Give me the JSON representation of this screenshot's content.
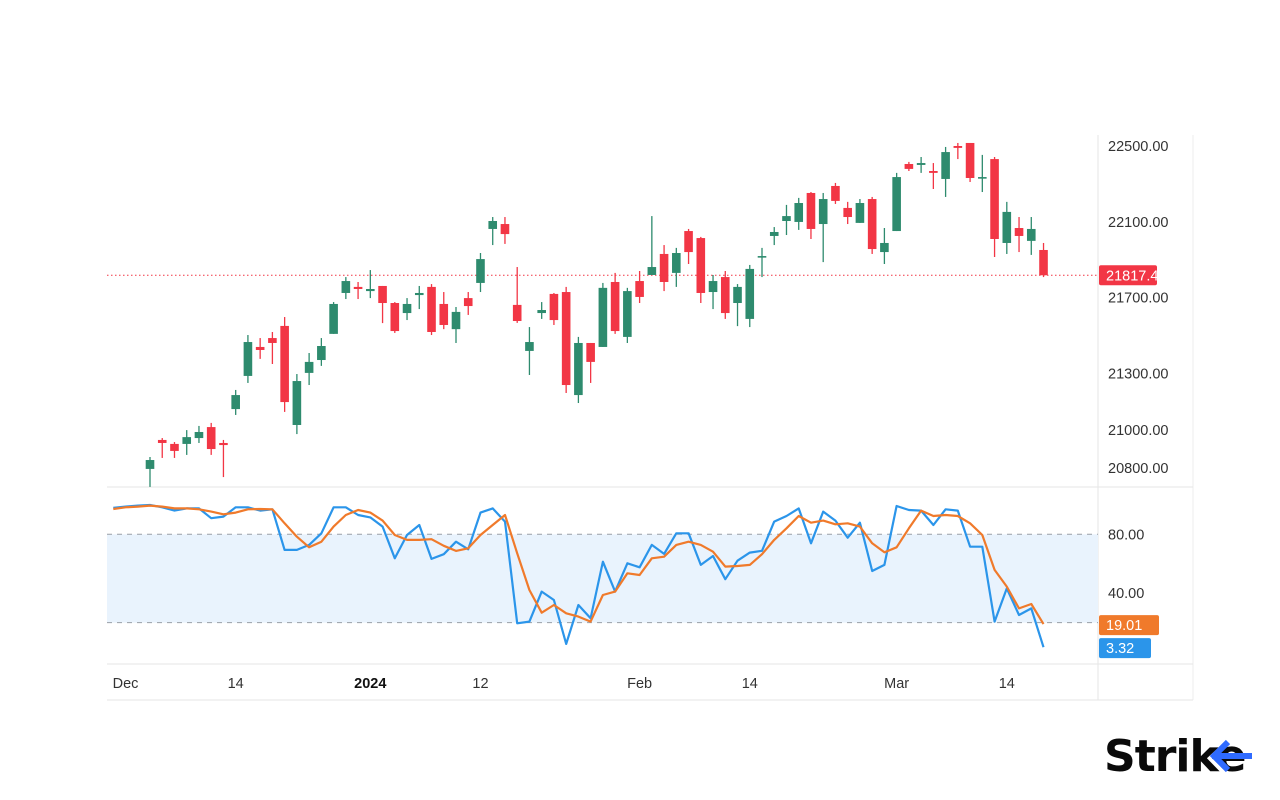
{
  "chart_data": [
    {
      "type": "candlestick",
      "title": "",
      "price_axis": {
        "ticks": [
          22500,
          22100,
          21700,
          21300,
          21000,
          20800
        ],
        "tick_labels": [
          "22500.00",
          "22100.00",
          "21700.00",
          "21300.00",
          "21000.00",
          "20800.00"
        ],
        "range": [
          20700,
          22520
        ],
        "position": "right"
      },
      "last_price": {
        "value": 21817.45,
        "label": "21817.45",
        "color": "#f23645"
      },
      "colors": {
        "up": "#2e8b6e",
        "down": "#f23645"
      },
      "ohlc_columns": [
        "open",
        "high",
        "low",
        "close"
      ],
      "candles": [
        [
          20795,
          20858,
          20700,
          20842
        ],
        [
          20948,
          20958,
          20853,
          20932
        ],
        [
          20927,
          20937,
          20853,
          20890
        ],
        [
          20927,
          21000,
          20869,
          20963
        ],
        [
          20958,
          21022,
          20932,
          20990
        ],
        [
          21016,
          21038,
          20869,
          20900
        ],
        [
          20932,
          20948,
          20752,
          20921
        ],
        [
          21111,
          21212,
          21080,
          21185
        ],
        [
          21286,
          21502,
          21249,
          21465
        ],
        [
          21439,
          21486,
          21376,
          21423
        ],
        [
          21486,
          21518,
          21349,
          21460
        ],
        [
          21550,
          21597,
          21096,
          21148
        ],
        [
          21027,
          21296,
          20979,
          21259
        ],
        [
          21302,
          21407,
          21238,
          21360
        ],
        [
          21370,
          21486,
          21339,
          21444
        ],
        [
          21508,
          21676,
          21508,
          21666
        ],
        [
          21724,
          21808,
          21692,
          21787
        ],
        [
          21756,
          21782,
          21692,
          21745
        ],
        [
          21734,
          21845,
          21697,
          21745
        ],
        [
          21761,
          21761,
          21565,
          21671
        ],
        [
          21671,
          21676,
          21513,
          21523
        ],
        [
          21618,
          21697,
          21581,
          21666
        ],
        [
          21713,
          21761,
          21639,
          21724
        ],
        [
          21756,
          21771,
          21502,
          21518
        ],
        [
          21666,
          21729,
          21533,
          21555
        ],
        [
          21533,
          21650,
          21460,
          21624
        ],
        [
          21697,
          21729,
          21608,
          21655
        ],
        [
          21777,
          21935,
          21729,
          21903
        ],
        [
          22062,
          22125,
          21977,
          22104
        ],
        [
          22088,
          22125,
          21983,
          22035
        ],
        [
          21661,
          21861,
          21566,
          21576
        ],
        [
          21418,
          21544,
          21291,
          21465
        ],
        [
          21618,
          21676,
          21587,
          21634
        ],
        [
          21719,
          21724,
          21555,
          21581
        ],
        [
          21729,
          21756,
          21196,
          21238
        ],
        [
          21185,
          21492,
          21143,
          21460
        ],
        [
          21460,
          21460,
          21249,
          21360
        ],
        [
          21439,
          21777,
          21439,
          21751
        ],
        [
          21782,
          21830,
          21508,
          21523
        ],
        [
          21492,
          21751,
          21460,
          21734
        ],
        [
          21787,
          21840,
          21671,
          21703
        ],
        [
          21819,
          22130,
          21819,
          21861
        ],
        [
          21930,
          21977,
          21734,
          21782
        ],
        [
          21830,
          21962,
          21756,
          21935
        ],
        [
          22051,
          22062,
          21877,
          21940
        ],
        [
          22014,
          22020,
          21671,
          21724
        ],
        [
          21729,
          21819,
          21639,
          21787
        ],
        [
          21808,
          21840,
          21587,
          21618
        ],
        [
          21671,
          21771,
          21549,
          21756
        ],
        [
          21587,
          21872,
          21544,
          21851
        ],
        [
          21914,
          21962,
          21808,
          21919
        ],
        [
          22025,
          22072,
          21977,
          22046
        ],
        [
          22104,
          22189,
          22030,
          22130
        ],
        [
          22099,
          22226,
          22057,
          22199
        ],
        [
          22252,
          22257,
          22009,
          22062
        ],
        [
          22088,
          22252,
          21887,
          22220
        ],
        [
          22289,
          22305,
          22194,
          22210
        ],
        [
          22173,
          22205,
          22088,
          22125
        ],
        [
          22094,
          22220,
          22094,
          22199
        ],
        [
          22220,
          22231,
          21930,
          21956
        ],
        [
          21940,
          22067,
          21877,
          21988
        ],
        [
          22051,
          22358,
          22051,
          22336
        ],
        [
          22405,
          22416,
          22368,
          22379
        ],
        [
          22400,
          22442,
          22358,
          22410
        ],
        [
          22368,
          22410,
          22273,
          22358
        ],
        [
          22326,
          22495,
          22231,
          22468
        ],
        [
          22500,
          22516,
          22431,
          22490
        ],
        [
          22516,
          22516,
          22310,
          22331
        ],
        [
          22331,
          22453,
          22257,
          22336
        ],
        [
          22431,
          22442,
          21914,
          22009
        ],
        [
          21988,
          22205,
          21930,
          22152
        ],
        [
          22067,
          22125,
          21940,
          22025
        ],
        [
          21999,
          22125,
          21925,
          22062
        ],
        [
          21951,
          21988,
          21808,
          21817.45
        ]
      ]
    },
    {
      "type": "line",
      "title": "",
      "value_axis": {
        "ticks": [
          80,
          40
        ],
        "tick_labels": [
          "80.00",
          "40.00"
        ],
        "range": [
          0,
          100
        ],
        "position": "right"
      },
      "band": {
        "upper": 80,
        "lower": 20,
        "color": "#e9f3fd"
      },
      "start_bar": -3,
      "series": [
        {
          "color": "#2b95ea",
          "last_label": "3.32",
          "values": [
            97.9,
            98.8,
            99.5,
            99.9,
            98.3,
            96.1,
            97.6,
            97.6,
            90.9,
            92.0,
            98.3,
            98.3,
            96.1,
            97.0,
            69.4,
            69.4,
            72.8,
            80.7,
            98.3,
            98.3,
            93.1,
            91.5,
            85.2,
            63.7,
            79.5,
            86.3,
            63.3,
            66.5,
            75.0,
            69.8,
            94.7,
            97.6,
            88.6,
            19.6,
            20.7,
            41.1,
            35.4,
            5.6,
            32.0,
            23.0,
            61.4,
            41.1,
            60.3,
            57.6,
            72.8,
            66.7,
            80.7,
            80.7,
            59.2,
            65.3,
            49.5,
            62.1,
            67.6,
            68.8,
            88.6,
            92.4,
            97.6,
            73.9,
            95.4,
            89.3,
            77.7,
            87.9,
            55.1,
            59.2,
            99.2,
            96.5,
            96.1,
            86.3,
            97.0,
            96.1,
            71.6,
            71.6,
            20.7,
            43.3,
            25.2,
            29.7,
            3.32
          ]
        },
        {
          "color": "#f07a2b",
          "last_label": "19.01",
          "values": [
            97.2,
            98.3,
            98.8,
            99.5,
            98.8,
            97.6,
            97.6,
            97.0,
            95.4,
            93.6,
            94.7,
            97.0,
            97.2,
            97.0,
            87.5,
            78.4,
            71.2,
            75.0,
            85.2,
            93.1,
            96.5,
            94.7,
            89.3,
            79.5,
            76.2,
            76.2,
            76.7,
            72.2,
            68.7,
            70.5,
            79.5,
            86.3,
            93.1,
            67.1,
            42.2,
            26.8,
            32.0,
            26.4,
            24.1,
            20.7,
            38.8,
            41.1,
            53.5,
            52.4,
            63.7,
            64.8,
            72.8,
            75.0,
            72.8,
            68.2,
            58.1,
            58.5,
            59.2,
            66.5,
            76.2,
            84.1,
            92.4,
            87.9,
            89.3,
            86.8,
            87.5,
            85.2,
            73.9,
            67.8,
            71.2,
            84.1,
            96.1,
            92.4,
            93.1,
            92.4,
            87.5,
            79.5,
            55.8,
            44.5,
            29.7,
            32.7,
            19.01
          ]
        }
      ]
    }
  ],
  "time_axis": {
    "ticks": [
      {
        "label": "Dec",
        "bar": -2,
        "bold": false
      },
      {
        "label": "14",
        "bar": 7,
        "bold": false
      },
      {
        "label": "2024",
        "bar": 18,
        "bold": true
      },
      {
        "label": "12",
        "bar": 27,
        "bold": false
      },
      {
        "label": "Feb",
        "bar": 40,
        "bold": false
      },
      {
        "label": "14",
        "bar": 49,
        "bold": false
      },
      {
        "label": "Mar",
        "bar": 61,
        "bold": false
      },
      {
        "label": "14",
        "bar": 70,
        "bold": false
      }
    ]
  },
  "logo": {
    "text": "Strike",
    "accent": "#2f6bff"
  }
}
